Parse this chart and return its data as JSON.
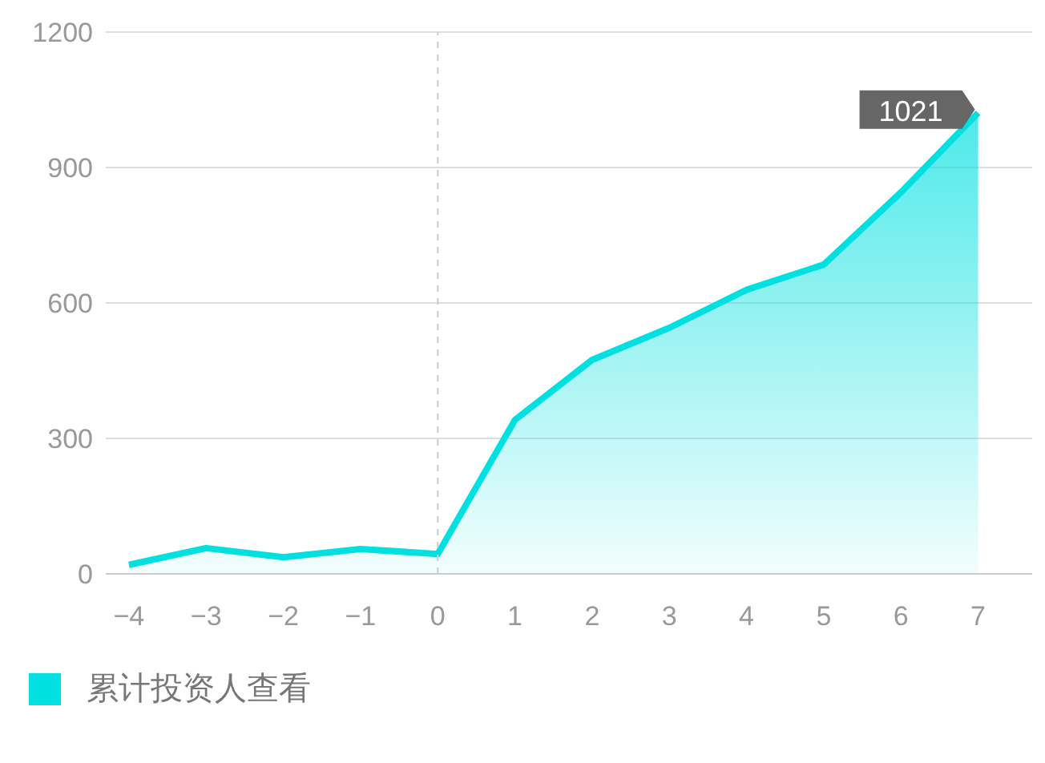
{
  "chart_data": {
    "type": "area",
    "x": [
      -4,
      -3,
      -2,
      -1,
      0,
      1,
      2,
      3,
      4,
      5,
      6,
      7
    ],
    "series": [
      {
        "name": "累计投资人查看",
        "color": "#00e0e0",
        "values": [
          20,
          57,
          37,
          55,
          44,
          341,
          474,
          545,
          629,
          685,
          845,
          1021
        ],
        "value_labels": [
          null,
          null,
          null,
          null,
          null,
          null,
          null,
          null,
          null,
          null,
          null,
          "1021"
        ]
      }
    ],
    "xlim": [
      -4.3,
      7.7
    ],
    "xticks": [
      {
        "value": -4,
        "label": "−4"
      },
      {
        "value": -3,
        "label": "−3"
      },
      {
        "value": -2,
        "label": "−2"
      },
      {
        "value": -1,
        "label": "−1"
      },
      0,
      1,
      2,
      3,
      4,
      5,
      6,
      7
    ],
    "ylim": [
      0,
      1200
    ],
    "yticks": [
      0,
      300,
      600,
      900,
      1200
    ],
    "grid": "y",
    "legend": "bottom left",
    "marker": "none",
    "ref_lines": [
      {
        "axis": "x",
        "value": 0,
        "color": "#cccccc",
        "line_style": "dashed"
      }
    ]
  }
}
